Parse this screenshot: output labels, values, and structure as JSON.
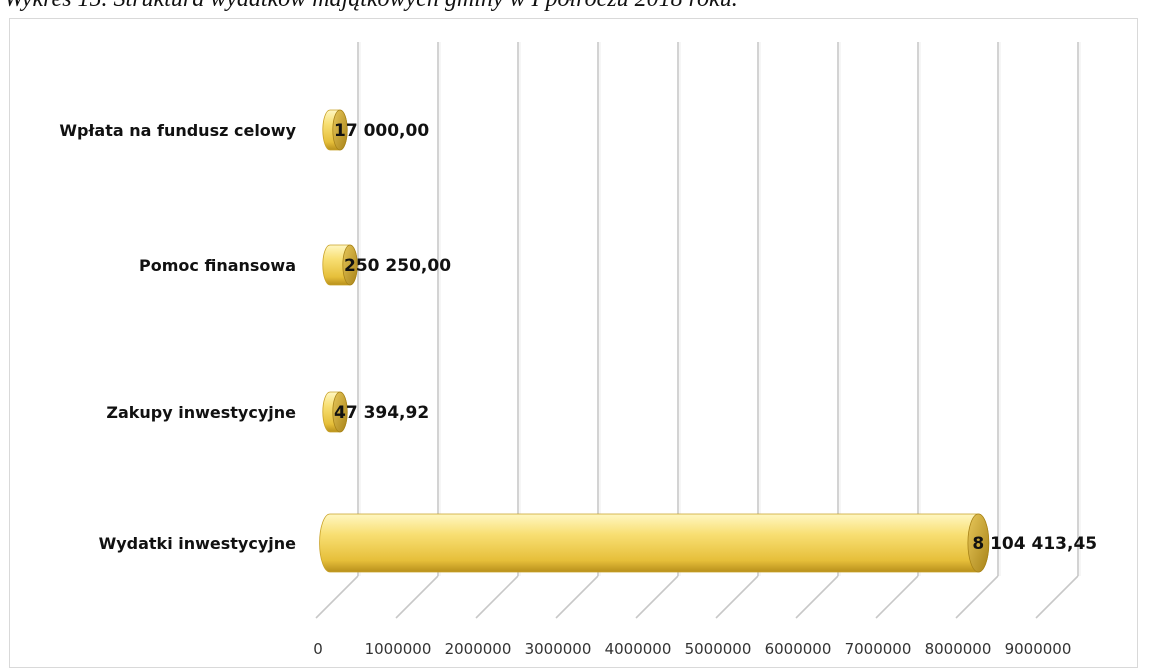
{
  "figure": {
    "caption": "Wykres 15. Struktura wydatków majątkowych gminy w I półroczu 2018 roku."
  },
  "chart_data": {
    "type": "bar",
    "orientation": "horizontal",
    "style": "3d-cylinder",
    "categories": [
      "Wydatki inwestycyjne",
      "Zakupy inwestycyjne",
      "Pomoc finansowa",
      "Wpłata na fundusz celowy"
    ],
    "values": [
      8104413.45,
      47394.92,
      250250.0,
      17000.0
    ],
    "data_labels": [
      "8 104 413,45",
      "47 394,92",
      "250 250,00",
      "17 000,00"
    ],
    "xlim": [
      0,
      9000000
    ],
    "xticks": [
      0,
      1000000,
      2000000,
      3000000,
      4000000,
      5000000,
      6000000,
      7000000,
      8000000,
      9000000
    ],
    "xtick_labels": [
      "0",
      "1000000",
      "2000000",
      "3000000",
      "4000000",
      "5000000",
      "6000000",
      "7000000",
      "8000000",
      "9000000"
    ],
    "grid": true,
    "legend": "none",
    "colors": {
      "bar_light": "#fff2a0",
      "bar_mid": "#f6d55c",
      "bar_dark": "#c9a227",
      "bar_cap": "#d8b445",
      "grid": "#bfbfbf"
    }
  }
}
